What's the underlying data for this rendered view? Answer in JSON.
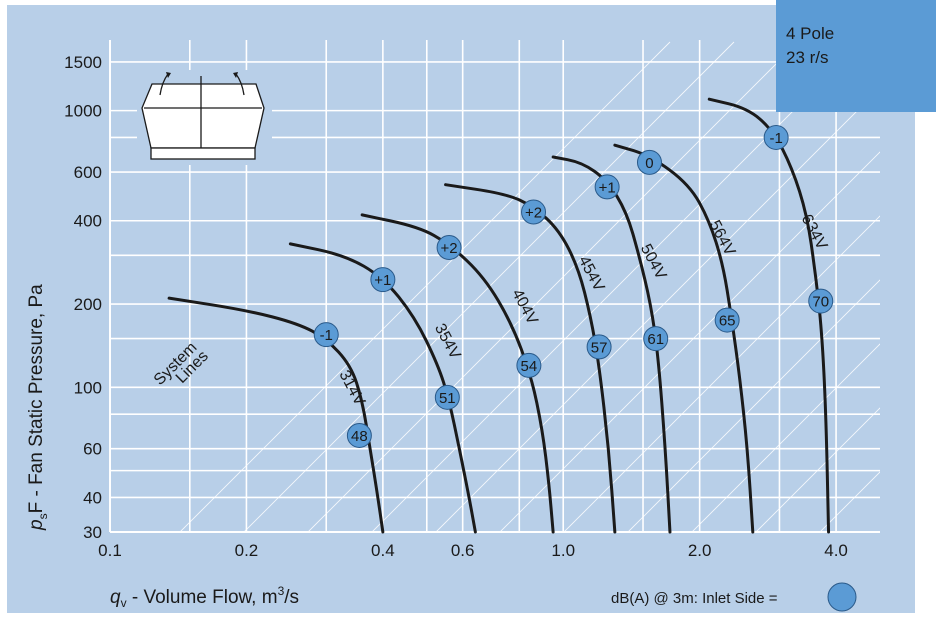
{
  "corner_badge": {
    "line1": "4 Pole",
    "line2": "23 r/s"
  },
  "colors": {
    "background": "#b8cfe8",
    "grid": "#ffffff",
    "curve": "#1a1a1a",
    "marker": "#5b9bd5",
    "badge": "#5b9bd5"
  },
  "icon": "roof-fan-icon",
  "chart_data": {
    "type": "line",
    "x_scale": "log",
    "y_scale": "log",
    "xlim": [
      0.1,
      5.0
    ],
    "ylim": [
      30,
      1800
    ],
    "xlabel": "qv - Volume Flow, m³/s",
    "ylabel": "psF - Fan Static Pressure, Pa",
    "xlabel_parts": {
      "main": "q",
      "sub": "v",
      "rest": " - Volume Flow, m",
      "sup": "3",
      "tail": "/s"
    },
    "ylabel_parts": {
      "main": "p",
      "sub": "s",
      "rest": "F - Fan Static Pressure, Pa"
    },
    "x_ticks": [
      0.1,
      0.2,
      0.4,
      0.6,
      1.0,
      2.0,
      4.0
    ],
    "x_tick_labels": [
      "0.1",
      "0.2",
      "0.4",
      "0.6",
      "1.0",
      "2.0",
      "4.0"
    ],
    "y_ticks": [
      30,
      40,
      60,
      100,
      200,
      400,
      600,
      1000,
      1500
    ],
    "y_tick_labels": [
      "30",
      "40",
      "60",
      "100",
      "200",
      "400",
      "600",
      "1000",
      "1500"
    ],
    "grid": true,
    "system_lines_label": [
      "System",
      "Lines"
    ],
    "legend_note": "dB(A) @ 3m:  Inlet Side =",
    "series": [
      {
        "name": "314V",
        "points": [
          [
            0.135,
            210
          ],
          [
            0.2,
            190
          ],
          [
            0.26,
            170
          ],
          [
            0.3,
            150
          ],
          [
            0.34,
            120
          ],
          [
            0.36,
            90
          ],
          [
            0.375,
            60
          ],
          [
            0.39,
            40
          ],
          [
            0.4,
            30
          ]
        ],
        "label_at": [
          0.32,
          112
        ],
        "markers": [
          {
            "text": "-1",
            "x": 0.3,
            "y": 155
          },
          {
            "text": "48",
            "x": 0.355,
            "y": 67
          }
        ]
      },
      {
        "name": "354V",
        "points": [
          [
            0.25,
            330
          ],
          [
            0.33,
            300
          ],
          [
            0.4,
            250
          ],
          [
            0.47,
            180
          ],
          [
            0.53,
            120
          ],
          [
            0.56,
            90
          ],
          [
            0.59,
            60
          ],
          [
            0.62,
            40
          ],
          [
            0.64,
            30
          ]
        ],
        "label_at": [
          0.52,
          165
        ],
        "markers": [
          {
            "text": "+1",
            "x": 0.4,
            "y": 245
          },
          {
            "text": "51",
            "x": 0.555,
            "y": 92
          }
        ]
      },
      {
        "name": "404V",
        "points": [
          [
            0.36,
            420
          ],
          [
            0.48,
            380
          ],
          [
            0.56,
            330
          ],
          [
            0.67,
            250
          ],
          [
            0.77,
            170
          ],
          [
            0.85,
            110
          ],
          [
            0.9,
            70
          ],
          [
            0.93,
            45
          ],
          [
            0.95,
            30
          ]
        ],
        "label_at": [
          0.77,
          220
        ],
        "markers": [
          {
            "text": "+2",
            "x": 0.56,
            "y": 320
          },
          {
            "text": "54",
            "x": 0.84,
            "y": 120
          }
        ]
      },
      {
        "name": "454V",
        "points": [
          [
            0.55,
            540
          ],
          [
            0.75,
            500
          ],
          [
            0.86,
            450
          ],
          [
            0.98,
            370
          ],
          [
            1.08,
            270
          ],
          [
            1.15,
            180
          ],
          [
            1.2,
            120
          ],
          [
            1.26,
            60
          ],
          [
            1.3,
            30
          ]
        ],
        "label_at": [
          1.08,
          290
        ],
        "markers": [
          {
            "text": "+2",
            "x": 0.86,
            "y": 430
          },
          {
            "text": "57",
            "x": 1.2,
            "y": 140
          }
        ]
      },
      {
        "name": "504V",
        "points": [
          [
            0.95,
            680
          ],
          [
            1.1,
            650
          ],
          [
            1.25,
            560
          ],
          [
            1.38,
            430
          ],
          [
            1.47,
            300
          ],
          [
            1.56,
            200
          ],
          [
            1.62,
            130
          ],
          [
            1.68,
            60
          ],
          [
            1.72,
            30
          ]
        ],
        "label_at": [
          1.48,
          320
        ],
        "markers": [
          {
            "text": "+1",
            "x": 1.25,
            "y": 530
          },
          {
            "text": "61",
            "x": 1.6,
            "y": 150
          }
        ]
      },
      {
        "name": "564V",
        "points": [
          [
            1.3,
            750
          ],
          [
            1.55,
            690
          ],
          [
            1.9,
            540
          ],
          [
            2.1,
            400
          ],
          [
            2.25,
            280
          ],
          [
            2.35,
            180
          ],
          [
            2.45,
            110
          ],
          [
            2.55,
            60
          ],
          [
            2.62,
            30
          ]
        ],
        "label_at": [
          2.1,
          390
        ],
        "markers": [
          {
            "text": "0",
            "x": 1.55,
            "y": 650
          },
          {
            "text": "65",
            "x": 2.3,
            "y": 175
          }
        ]
      },
      {
        "name": "634V",
        "points": [
          [
            2.1,
            1100
          ],
          [
            2.55,
            1020
          ],
          [
            2.9,
            850
          ],
          [
            3.2,
            620
          ],
          [
            3.45,
            420
          ],
          [
            3.6,
            260
          ],
          [
            3.72,
            160
          ],
          [
            3.8,
            80
          ],
          [
            3.85,
            30
          ]
        ],
        "label_at": [
          3.35,
          410
        ],
        "markers": [
          {
            "text": "-1",
            "x": 2.95,
            "y": 800
          },
          {
            "text": "70",
            "x": 3.7,
            "y": 205
          }
        ]
      }
    ]
  }
}
